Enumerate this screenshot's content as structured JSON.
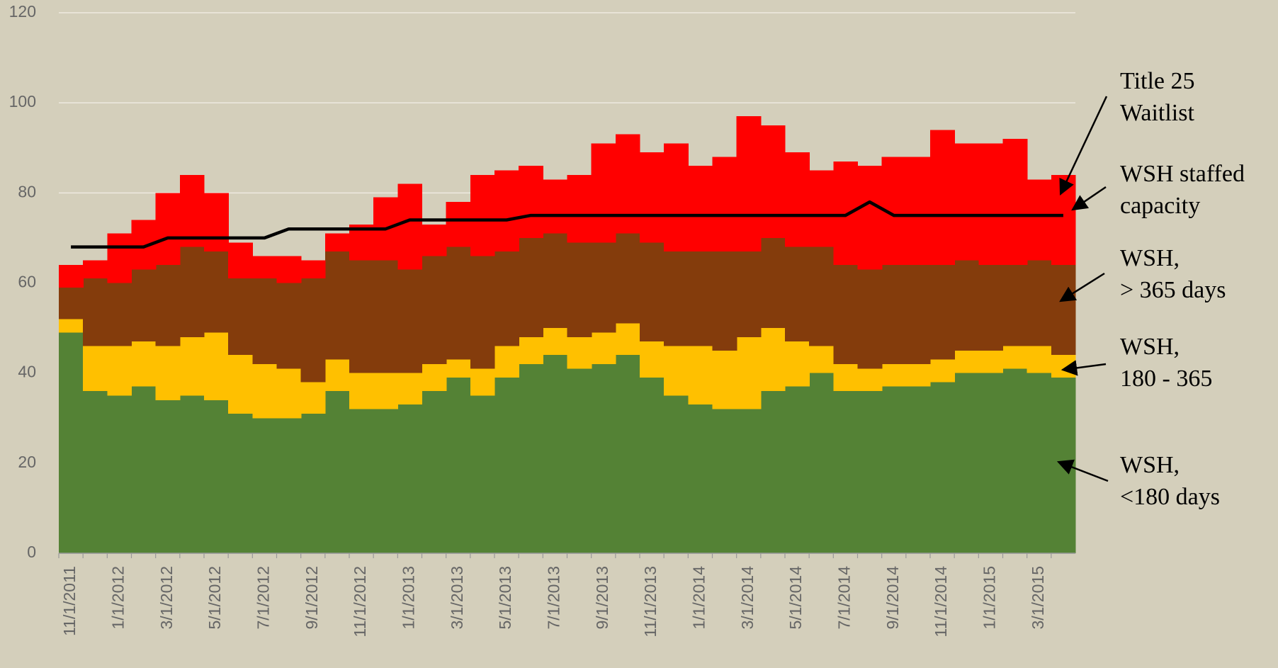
{
  "chart_data": {
    "type": "stacked-step-area",
    "categories": [
      "11/1/2011",
      null,
      "1/1/2012",
      null,
      "3/1/2012",
      null,
      "5/1/2012",
      null,
      "7/1/2012",
      null,
      "9/1/2012",
      null,
      "11/1/2012",
      null,
      "1/1/2013",
      null,
      "3/1/2013",
      null,
      "5/1/2013",
      null,
      "7/1/2013",
      null,
      "9/1/2013",
      null,
      "11/1/2013",
      null,
      "1/1/2014",
      null,
      "3/1/2014",
      null,
      "5/1/2014",
      null,
      "7/1/2014",
      null,
      "9/1/2014",
      null,
      "11/1/2014",
      null,
      "1/1/2015",
      null,
      "3/1/2015",
      null
    ],
    "series": [
      {
        "name": "WSH,\n<180 days",
        "color": "#548235",
        "values": [
          49,
          36,
          35,
          37,
          34,
          35,
          34,
          31,
          30,
          30,
          31,
          36,
          32,
          32,
          33,
          36,
          39,
          35,
          39,
          42,
          44,
          41,
          42,
          44,
          39,
          35,
          33,
          32,
          32,
          36,
          37,
          40,
          36,
          36,
          37,
          37,
          38,
          40,
          40,
          41,
          40,
          39
        ]
      },
      {
        "name": "WSH,\n180 - 365",
        "color": "#ffc000",
        "values": [
          3,
          10,
          11,
          10,
          12,
          13,
          15,
          13,
          12,
          11,
          7,
          7,
          8,
          8,
          7,
          6,
          4,
          6,
          7,
          6,
          6,
          7,
          7,
          7,
          8,
          11,
          13,
          13,
          16,
          14,
          10,
          6,
          6,
          5,
          5,
          5,
          5,
          5,
          5,
          5,
          6,
          5
        ]
      },
      {
        "name": "WSH,\n> 365 days",
        "color": "#843c0c",
        "values": [
          7,
          15,
          14,
          16,
          18,
          20,
          18,
          17,
          19,
          19,
          23,
          24,
          25,
          25,
          23,
          24,
          25,
          25,
          21,
          22,
          21,
          21,
          20,
          20,
          22,
          21,
          21,
          22,
          19,
          20,
          21,
          22,
          22,
          22,
          22,
          22,
          21,
          20,
          19,
          18,
          19,
          20
        ]
      },
      {
        "name": "Title 25\nWaitlist",
        "color": "#ff0000",
        "values": [
          5,
          4,
          11,
          11,
          16,
          16,
          13,
          8,
          5,
          6,
          4,
          4,
          8,
          14,
          19,
          7,
          10,
          18,
          18,
          16,
          12,
          15,
          22,
          22,
          20,
          24,
          19,
          21,
          30,
          25,
          21,
          17,
          23,
          23,
          24,
          24,
          30,
          26,
          27,
          28,
          18,
          20
        ]
      },
      {
        "name": "WSH staffed\ncapacity",
        "color": "#000000",
        "type": "line",
        "values": [
          68,
          68,
          68,
          68,
          70,
          70,
          70,
          70,
          70,
          72,
          72,
          72,
          72,
          72,
          74,
          74,
          74,
          74,
          74,
          75,
          75,
          75,
          75,
          75,
          75,
          75,
          75,
          75,
          75,
          75,
          75,
          75,
          75,
          78,
          75,
          75,
          75,
          75,
          75,
          75,
          75,
          75
        ]
      }
    ],
    "ylim": [
      0,
      120
    ],
    "yticks": [
      0,
      20,
      40,
      60,
      80,
      100,
      120
    ],
    "grid": true
  }
}
